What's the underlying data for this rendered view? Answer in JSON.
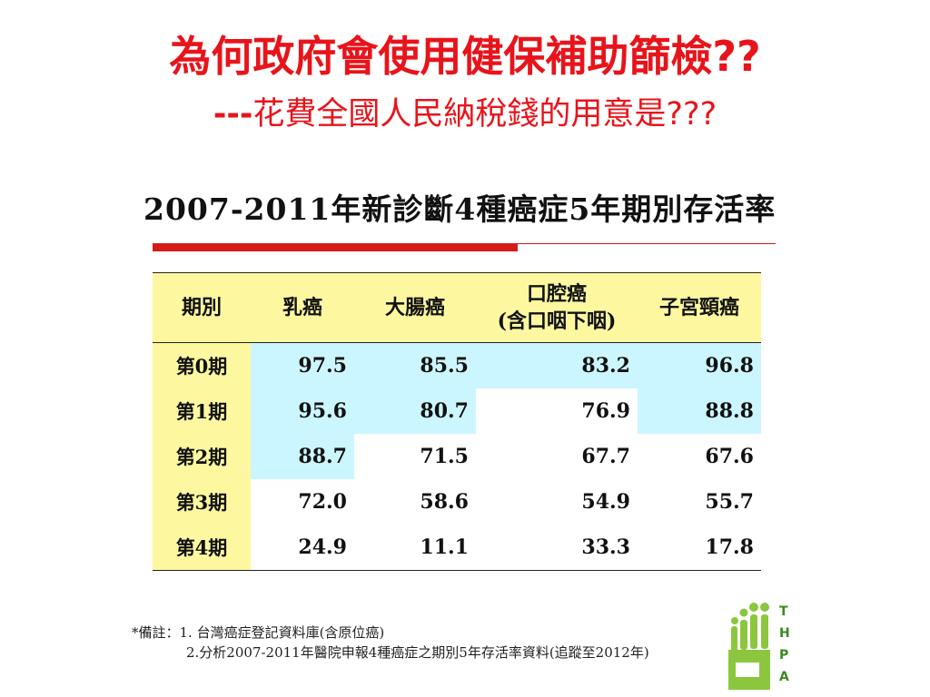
{
  "slide": {
    "title": "為何政府會使用健保補助篩檢??",
    "subtitle_dashes": "---",
    "subtitle_text": "花費全國人民納稅錢的用意是???"
  },
  "table": {
    "title": "2007-2011年新診斷4種癌症5年期別存活率",
    "headers": {
      "period": "期別",
      "breast": "乳癌",
      "colorectal": "大腸癌",
      "oral_line1": "口腔癌",
      "oral_line2": "(含口咽下咽)",
      "cervical": "子宮頸癌"
    },
    "rows": [
      {
        "stage": "第0期",
        "breast": "97.5",
        "colorectal": "85.5",
        "oral": "83.2",
        "cervical": "96.8"
      },
      {
        "stage": "第1期",
        "breast": "95.6",
        "colorectal": "80.7",
        "oral": "76.9",
        "cervical": "88.8"
      },
      {
        "stage": "第2期",
        "breast": "88.7",
        "colorectal": "71.5",
        "oral": "67.7",
        "cervical": "67.6"
      },
      {
        "stage": "第3期",
        "breast": "72.0",
        "colorectal": "58.6",
        "oral": "54.9",
        "cervical": "55.7"
      },
      {
        "stage": "第4期",
        "breast": "24.9",
        "colorectal": "11.1",
        "oral": "33.3",
        "cervical": "17.8"
      }
    ]
  },
  "notes": {
    "line1": "*備註：1. 台灣癌症登記資料庫(含原位癌)",
    "line2": "2.分析2007-2011年醫院申報4種癌症之期別5年存活率資料(追蹤至2012年)"
  },
  "logo": {
    "letters": [
      "T",
      "H",
      "P",
      "A"
    ]
  },
  "colors": {
    "title_red": "#e8141b",
    "header_yellow": "#fdf8a0",
    "highlight_cyan": "#ccf6ff",
    "rule_red": "#d51a1a",
    "logo_green": "#8cc63f"
  }
}
